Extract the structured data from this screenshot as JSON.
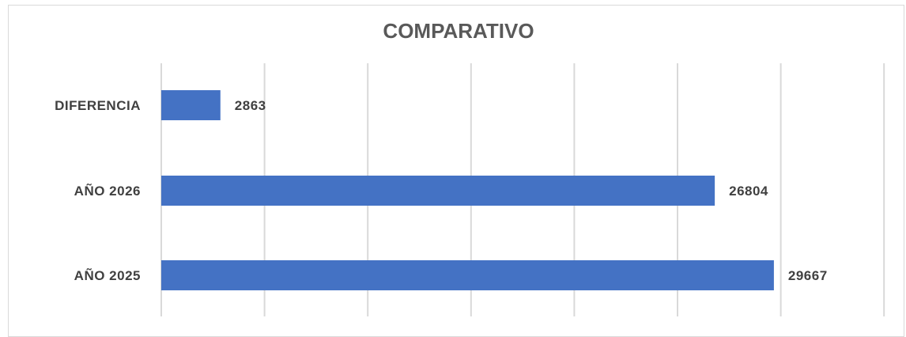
{
  "chart_data": {
    "type": "bar",
    "orientation": "horizontal",
    "title": "COMPARATIVO",
    "categories": [
      "DIFERENCIA",
      "AÑO 2026",
      "AÑO 2025"
    ],
    "values": [
      2863,
      26804,
      29667
    ],
    "data_labels": [
      "2863",
      "26804",
      "29667"
    ],
    "xlim": [
      0,
      35000
    ],
    "grid": true,
    "legend": "none",
    "bar_color": "#4472c4"
  }
}
